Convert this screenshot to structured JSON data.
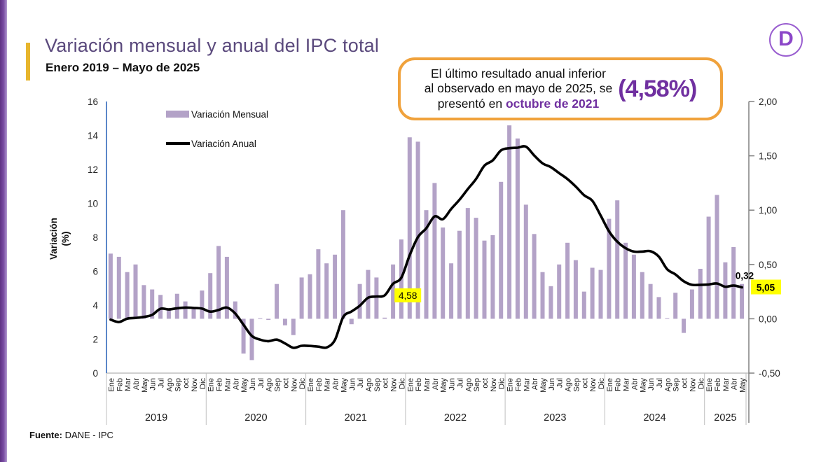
{
  "colors": {
    "bar": "#b3a2c7",
    "line": "#000000",
    "title_purple": "#5b4a7d",
    "callout_purple": "#7030a0",
    "callout_border": "#f0a23c",
    "highlight_yellow": "#ffff00",
    "gold_accent": "#e7b52d",
    "left_axis_blue": "#5b87c9",
    "logo_purple": "#8b46c8"
  },
  "header": {
    "title": "Variación mensual y anual del IPC total",
    "subtitle": "Enero 2019 – Mayo de 2025",
    "logo_letter": "D"
  },
  "callout": {
    "line1": "El último resultado anual inferior",
    "line2": "al observado en mayo de 2025, se",
    "line3_prefix": "presentó en ",
    "line3_bold": "octubre de 2021",
    "value": "(4,58%)"
  },
  "legend": {
    "monthly": "Variación Mensual",
    "annual": "Variación Anual"
  },
  "footer": {
    "source_label": "Fuente:",
    "source_text": " DANE - IPC"
  },
  "chart_data": {
    "type": "bar+line",
    "title": "Variación mensual y anual del IPC total",
    "month_labels": [
      "Ene",
      "Feb",
      "Mar",
      "Abr",
      "May",
      "Jun",
      "Jul",
      "Ago",
      "Sep",
      "oct",
      "Nov",
      "Dic"
    ],
    "series": [
      {
        "name": "Variación Mensual",
        "type": "bar",
        "axis": "right"
      },
      {
        "name": "Variación Anual",
        "type": "line",
        "axis": "left"
      }
    ],
    "left_axis": {
      "label": "Variación (%)",
      "min": 0,
      "max": 16,
      "step": 2
    },
    "right_axis": {
      "min": -0.5,
      "max": 2.0,
      "step": 0.5
    },
    "years": [
      {
        "year": "2019",
        "monthly": [
          0.6,
          0.57,
          0.43,
          0.5,
          0.31,
          0.27,
          0.22,
          0.09,
          0.23,
          0.16,
          0.1,
          0.26
        ],
        "annual": [
          3.15,
          3.01,
          3.21,
          3.25,
          3.31,
          3.43,
          3.79,
          3.75,
          3.82,
          3.86,
          3.84,
          3.8
        ]
      },
      {
        "year": "2020",
        "monthly": [
          0.42,
          0.67,
          0.57,
          0.16,
          -0.32,
          -0.38,
          0.0,
          -0.01,
          0.32,
          -0.06,
          -0.15,
          0.38
        ],
        "annual": [
          3.62,
          3.72,
          3.86,
          3.51,
          2.85,
          2.19,
          1.97,
          1.88,
          1.97,
          1.75,
          1.49,
          1.61
        ]
      },
      {
        "year": "2021",
        "monthly": [
          0.41,
          0.64,
          0.51,
          0.59,
          1.0,
          -0.05,
          0.32,
          0.45,
          0.38,
          0.01,
          0.5,
          0.73
        ],
        "annual": [
          1.6,
          1.56,
          1.51,
          1.95,
          3.3,
          3.63,
          3.97,
          4.44,
          4.51,
          4.58,
          5.26,
          5.62
        ]
      },
      {
        "year": "2022",
        "monthly": [
          1.67,
          1.63,
          1.0,
          1.25,
          0.84,
          0.51,
          0.81,
          1.02,
          0.93,
          0.72,
          0.77,
          1.26
        ],
        "annual": [
          6.94,
          8.01,
          8.53,
          9.23,
          9.07,
          9.67,
          10.21,
          10.84,
          11.44,
          12.22,
          12.53,
          13.12
        ]
      },
      {
        "year": "2023",
        "monthly": [
          1.78,
          1.66,
          1.05,
          0.78,
          0.43,
          0.3,
          0.5,
          0.7,
          0.54,
          0.25,
          0.47,
          0.45
        ],
        "annual": [
          13.25,
          13.28,
          13.34,
          12.82,
          12.36,
          12.13,
          11.78,
          11.43,
          10.99,
          10.48,
          10.15,
          9.28
        ]
      },
      {
        "year": "2024",
        "monthly": [
          0.92,
          1.09,
          0.7,
          0.59,
          0.43,
          0.32,
          0.2,
          0.0,
          0.24,
          -0.13,
          0.27,
          0.46
        ],
        "annual": [
          8.35,
          7.74,
          7.36,
          7.16,
          7.16,
          7.18,
          6.86,
          6.12,
          5.81,
          5.41,
          5.2,
          5.2
        ]
      },
      {
        "year": "2025",
        "monthly": [
          0.94,
          1.14,
          0.52,
          0.66,
          0.32
        ],
        "annual": [
          5.22,
          5.28,
          5.09,
          5.16,
          5.05
        ]
      }
    ],
    "point_labels": [
      {
        "text": "4,58",
        "series": "annual",
        "year": "2021",
        "month": "oct",
        "highlight": true,
        "bold": false
      },
      {
        "text": "0,32",
        "series": "monthly",
        "year": "2025",
        "month": "May",
        "highlight": false,
        "bold": true
      },
      {
        "text": "5,05",
        "series": "annual",
        "year": "2025",
        "month": "May",
        "highlight": true,
        "bold": true
      }
    ]
  }
}
